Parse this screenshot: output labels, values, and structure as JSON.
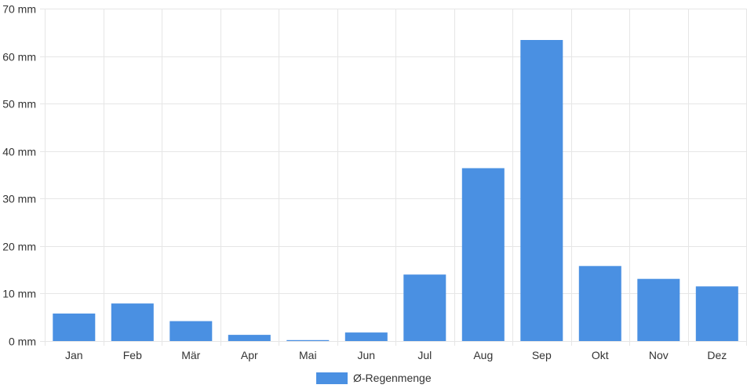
{
  "chart_data": {
    "type": "bar",
    "categories": [
      "Jan",
      "Feb",
      "Mär",
      "Apr",
      "Mai",
      "Jun",
      "Jul",
      "Aug",
      "Sep",
      "Okt",
      "Nov",
      "Dez"
    ],
    "series": [
      {
        "name": "Ø-Regenmenge",
        "values": [
          5.8,
          7.9,
          4.2,
          1.3,
          0.2,
          1.8,
          14.0,
          36.4,
          63.4,
          15.8,
          13.1,
          11.5
        ]
      }
    ],
    "ylim": [
      0,
      70
    ],
    "yticks": [
      0,
      10,
      20,
      30,
      40,
      50,
      60,
      70
    ],
    "ytick_suffix": " mm",
    "grid": true,
    "legend_position": "bottom",
    "colors": {
      "bar": "#4a90e2",
      "grid": "#e6e6e6",
      "axis": "#cccccc",
      "text": "#333333"
    }
  }
}
